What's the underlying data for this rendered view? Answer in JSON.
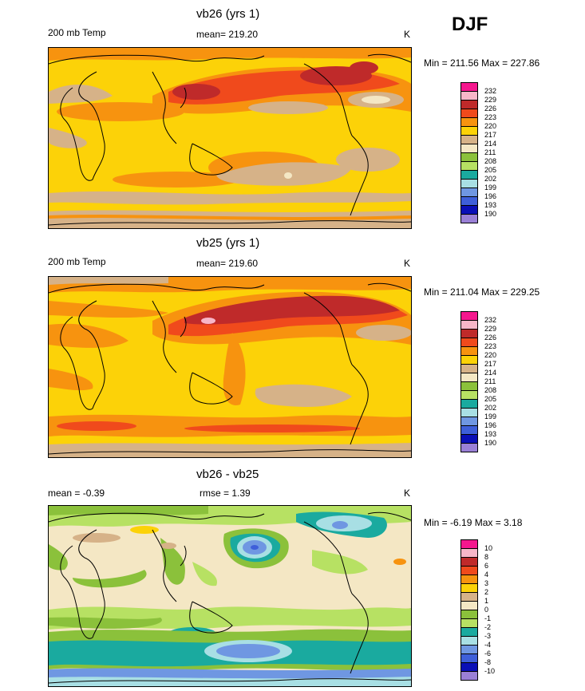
{
  "season": "DJF",
  "panels": [
    {
      "title": "vb26 (yrs 1)",
      "left_label": "200 mb Temp",
      "center_label": "mean= 219.20",
      "units": "K",
      "minmax": "Min = 211.56 Max = 227.86",
      "legend_levels": [
        "232",
        "229",
        "226",
        "223",
        "220",
        "217",
        "214",
        "211",
        "208",
        "205",
        "202",
        "199",
        "196",
        "193",
        "190"
      ],
      "legend_colors": [
        "#f5178e",
        "#f7b6c8",
        "#bf2a2a",
        "#f04a1c",
        "#f7930f",
        "#fcd208",
        "#d6b288",
        "#f4e7c4",
        "#8bc13b",
        "#b7e163",
        "#1aaa9f",
        "#a8dfe4",
        "#6f97e2",
        "#3e5fd9",
        "#0a0fb6",
        "#9a80d6"
      ]
    },
    {
      "title": "vb25 (yrs 1)",
      "left_label": "200 mb Temp",
      "center_label": "mean= 219.60",
      "units": "K",
      "minmax": "Min = 211.04 Max = 229.25",
      "legend_levels": [
        "232",
        "229",
        "226",
        "223",
        "220",
        "217",
        "214",
        "211",
        "208",
        "205",
        "202",
        "199",
        "196",
        "193",
        "190"
      ],
      "legend_colors": [
        "#f5178e",
        "#f7b6c8",
        "#bf2a2a",
        "#f04a1c",
        "#f7930f",
        "#fcd208",
        "#d6b288",
        "#f4e7c4",
        "#8bc13b",
        "#b7e163",
        "#1aaa9f",
        "#a8dfe4",
        "#6f97e2",
        "#3e5fd9",
        "#0a0fb6",
        "#9a80d6"
      ]
    },
    {
      "title": "vb26 - vb25",
      "left_label": "mean =  -0.39",
      "center_label": "rmse =   1.39",
      "units": "K",
      "minmax": "Min =  -6.19 Max =   3.18",
      "legend_levels": [
        "10",
        "8",
        "6",
        "4",
        "3",
        "2",
        "1",
        "0",
        "-1",
        "-2",
        "-3",
        "-4",
        "-6",
        "-8",
        "-10"
      ],
      "legend_colors": [
        "#f5178e",
        "#f7b6c8",
        "#bf2a2a",
        "#f04a1c",
        "#f7930f",
        "#fcd208",
        "#d6b288",
        "#f4e7c4",
        "#8bc13b",
        "#b7e163",
        "#1aaa9f",
        "#a8dfe4",
        "#6f97e2",
        "#3e5fd9",
        "#0a0fb6",
        "#9a80d6"
      ]
    }
  ],
  "chart_data": [
    {
      "type": "heatmap",
      "title": "vb26 (yrs 1)",
      "subtitle": "200 mb Temp",
      "mean": 219.2,
      "units": "K",
      "min": 211.56,
      "max": 227.86
    },
    {
      "type": "heatmap",
      "title": "vb25 (yrs 1)",
      "subtitle": "200 mb Temp",
      "mean": 219.6,
      "units": "K",
      "min": 211.04,
      "max": 229.25
    },
    {
      "type": "heatmap",
      "title": "vb26 - vb25",
      "mean": -0.39,
      "rmse": 1.39,
      "units": "K",
      "min": -6.19,
      "max": 3.18
    }
  ]
}
